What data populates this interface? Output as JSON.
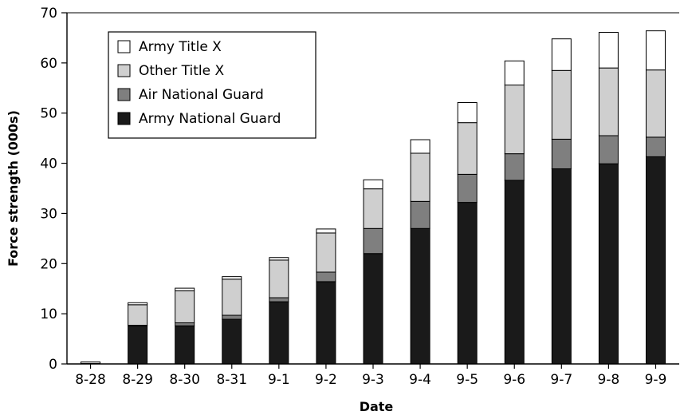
{
  "chart_data": {
    "type": "bar",
    "stacked": true,
    "title": "",
    "xlabel": "Date",
    "ylabel": "Force strength (000s)",
    "ylim": [
      0,
      70
    ],
    "yticks": [
      0,
      10,
      20,
      30,
      40,
      50,
      60,
      70
    ],
    "grid": false,
    "legend_position": "top-left",
    "categories": [
      "8-28",
      "8-29",
      "8-30",
      "8-31",
      "9-1",
      "9-2",
      "9-3",
      "9-4",
      "9-5",
      "9-6",
      "9-7",
      "9-8",
      "9-9"
    ],
    "series": [
      {
        "name": "Army National Guard",
        "color": "#1a1a1a",
        "values": [
          0.0,
          7.6,
          7.6,
          8.9,
          12.4,
          16.4,
          22.0,
          27.0,
          32.2,
          36.6,
          38.9,
          39.9,
          41.3
        ]
      },
      {
        "name": "Air National Guard",
        "color": "#7f7f7f",
        "values": [
          0.0,
          0.1,
          0.6,
          0.8,
          0.8,
          1.9,
          5.0,
          5.4,
          5.6,
          5.3,
          5.9,
          5.6,
          3.9
        ]
      },
      {
        "name": "Other Title X",
        "color": "#cfcfcf",
        "values": [
          0.1,
          4.1,
          6.4,
          7.2,
          7.5,
          7.8,
          7.9,
          9.6,
          10.3,
          13.7,
          13.7,
          13.5,
          13.4
        ]
      },
      {
        "name": "Army Title X",
        "color": "#ffffff",
        "values": [
          0.3,
          0.4,
          0.5,
          0.5,
          0.5,
          0.8,
          1.8,
          2.7,
          4.0,
          4.8,
          6.3,
          7.1,
          7.8
        ]
      }
    ],
    "legend_order": [
      "Army Title X",
      "Other Title X",
      "Air National Guard",
      "Army National Guard"
    ]
  }
}
